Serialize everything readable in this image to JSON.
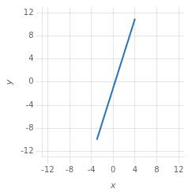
{
  "chart_data": {
    "type": "line",
    "x": [
      -3,
      4
    ],
    "values": [
      -10,
      11
    ],
    "color": "#2e75b6",
    "xlabel": "x",
    "ylabel": "y",
    "xlim": [
      -13,
      13
    ],
    "ylim": [
      -13,
      13
    ],
    "xticks": [
      -12,
      -8,
      -4,
      0,
      4,
      8,
      12
    ],
    "yticks": [
      -12,
      -8,
      -4,
      0,
      4,
      8,
      12
    ],
    "grid": true
  }
}
